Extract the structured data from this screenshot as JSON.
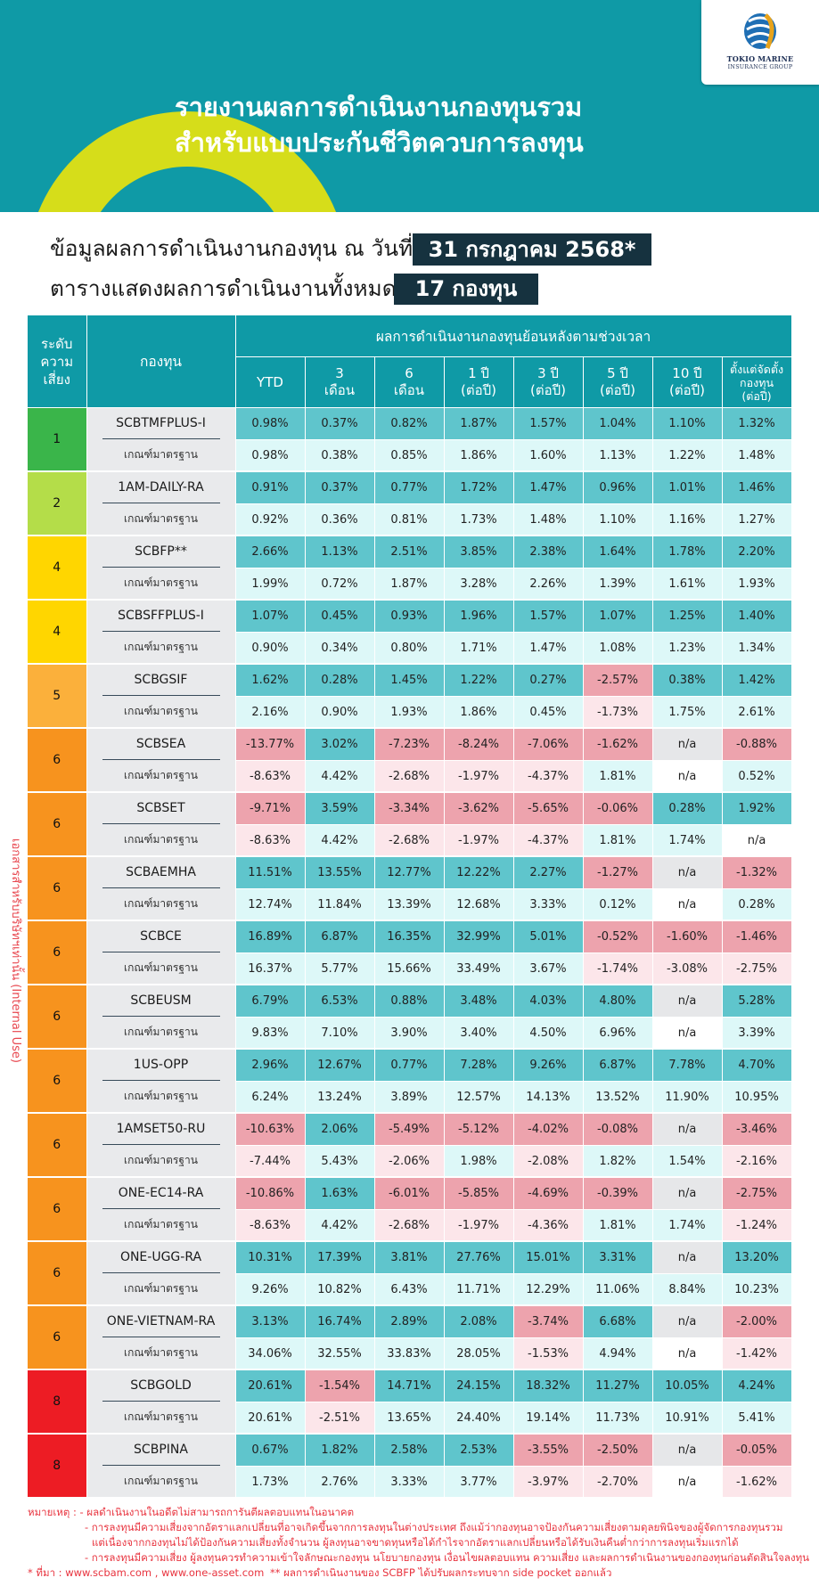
{
  "header": {
    "title_line1": "รายงานผลการดำเนินงานกองทุนรวม",
    "title_line2": "สำหรับแบบประกันชีวิตควบการลงทุน",
    "logo_name": "TOKIO MARINE",
    "logo_sub": "INSURANCE GROUP",
    "accent": "#0f9aa6",
    "arc_color": "#d6dd1a"
  },
  "info": {
    "line1_text": "ข้อมูลผลการดำเนินงานกองทุน ณ วันที่",
    "line1_badge": "31 กรกฎาคม 2568*",
    "line2_text": "ตารางแสดงผลการดำเนินงานทั้งหมด",
    "line2_badge": "17 กองทุน"
  },
  "side_note": "เอกสารสำหรับบริษัทฯเท่านั้น (Internal Use)",
  "table": {
    "risk_header": [
      "ระดับ",
      "ความ",
      "เสี่ยง"
    ],
    "fund_header": "กองทุน",
    "period_group_header": "ผลการดำเนินงานกองทุนย้อนหลังตามช่วงเวลา",
    "period_headers": [
      [
        "YTD"
      ],
      [
        "3",
        "เดือน"
      ],
      [
        "6",
        "เดือน"
      ],
      [
        "1 ปี",
        "(ต่อปี)"
      ],
      [
        "3 ปี",
        "(ต่อปี)"
      ],
      [
        "5 ปี",
        "(ต่อปี)"
      ],
      [
        "10 ปี",
        "(ต่อปี)"
      ],
      [
        "ตั้งแต่จัดตั้ง",
        "กองทุน",
        "(ต่อปี)"
      ]
    ],
    "benchmark_label": "เกณฑ์มาตรฐาน",
    "funds": [
      {
        "risk": "1",
        "name": "SCBTMFPLUS-I",
        "values": [
          "0.98%",
          "0.37%",
          "0.82%",
          "1.87%",
          "1.57%",
          "1.04%",
          "1.10%",
          "1.32%"
        ],
        "bench": [
          "0.98%",
          "0.38%",
          "0.85%",
          "1.86%",
          "1.60%",
          "1.13%",
          "1.22%",
          "1.48%"
        ]
      },
      {
        "risk": "2",
        "name": "1AM-DAILY-RA",
        "values": [
          "0.91%",
          "0.37%",
          "0.77%",
          "1.72%",
          "1.47%",
          "0.96%",
          "1.01%",
          "1.46%"
        ],
        "bench": [
          "0.92%",
          "0.36%",
          "0.81%",
          "1.73%",
          "1.48%",
          "1.10%",
          "1.16%",
          "1.27%"
        ]
      },
      {
        "risk": "4",
        "name": "SCBFP**",
        "values": [
          "2.66%",
          "1.13%",
          "2.51%",
          "3.85%",
          "2.38%",
          "1.64%",
          "1.78%",
          "2.20%"
        ],
        "bench": [
          "1.99%",
          "0.72%",
          "1.87%",
          "3.28%",
          "2.26%",
          "1.39%",
          "1.61%",
          "1.93%"
        ]
      },
      {
        "risk": "4",
        "name": "SCBSFFPLUS-I",
        "values": [
          "1.07%",
          "0.45%",
          "0.93%",
          "1.96%",
          "1.57%",
          "1.07%",
          "1.25%",
          "1.40%"
        ],
        "bench": [
          "0.90%",
          "0.34%",
          "0.80%",
          "1.71%",
          "1.47%",
          "1.08%",
          "1.23%",
          "1.34%"
        ]
      },
      {
        "risk": "5",
        "name": "SCBGSIF",
        "values": [
          "1.62%",
          "0.28%",
          "1.45%",
          "1.22%",
          "0.27%",
          "-2.57%",
          "0.38%",
          "1.42%"
        ],
        "bench": [
          "2.16%",
          "0.90%",
          "1.93%",
          "1.86%",
          "0.45%",
          "-1.73%",
          "1.75%",
          "2.61%"
        ]
      },
      {
        "risk": "6",
        "name": "SCBSEA",
        "values": [
          "-13.77%",
          "3.02%",
          "-7.23%",
          "-8.24%",
          "-7.06%",
          "-1.62%",
          "n/a",
          "-0.88%"
        ],
        "bench": [
          "-8.63%",
          "4.42%",
          "-2.68%",
          "-1.97%",
          "-4.37%",
          "1.81%",
          "n/a",
          "0.52%"
        ]
      },
      {
        "risk": "6",
        "name": "SCBSET",
        "values": [
          "-9.71%",
          "3.59%",
          "-3.34%",
          "-3.62%",
          "-5.65%",
          "-0.06%",
          "0.28%",
          "1.92%"
        ],
        "bench": [
          "-8.63%",
          "4.42%",
          "-2.68%",
          "-1.97%",
          "-4.37%",
          "1.81%",
          "1.74%",
          "n/a"
        ]
      },
      {
        "risk": "6",
        "name": "SCBAEMHA",
        "values": [
          "11.51%",
          "13.55%",
          "12.77%",
          "12.22%",
          "2.27%",
          "-1.27%",
          "n/a",
          "-1.32%"
        ],
        "bench": [
          "12.74%",
          "11.84%",
          "13.39%",
          "12.68%",
          "3.33%",
          "0.12%",
          "n/a",
          "0.28%"
        ]
      },
      {
        "risk": "6",
        "name": "SCBCE",
        "values": [
          "16.89%",
          "6.87%",
          "16.35%",
          "32.99%",
          "5.01%",
          "-0.52%",
          "-1.60%",
          "-1.46%"
        ],
        "bench": [
          "16.37%",
          "5.77%",
          "15.66%",
          "33.49%",
          "3.67%",
          "-1.74%",
          "-3.08%",
          "-2.75%"
        ]
      },
      {
        "risk": "6",
        "name": "SCBEUSM",
        "values": [
          "6.79%",
          "6.53%",
          "0.88%",
          "3.48%",
          "4.03%",
          "4.80%",
          "n/a",
          "5.28%"
        ],
        "bench": [
          "9.83%",
          "7.10%",
          "3.90%",
          "3.40%",
          "4.50%",
          "6.96%",
          "n/a",
          "3.39%"
        ]
      },
      {
        "risk": "6",
        "name": "1US-OPP",
        "values": [
          "2.96%",
          "12.67%",
          "0.77%",
          "7.28%",
          "9.26%",
          "6.87%",
          "7.78%",
          "4.70%"
        ],
        "bench": [
          "6.24%",
          "13.24%",
          "3.89%",
          "12.57%",
          "14.13%",
          "13.52%",
          "11.90%",
          "10.95%"
        ]
      },
      {
        "risk": "6",
        "name": "1AMSET50-RU",
        "values": [
          "-10.63%",
          "2.06%",
          "-5.49%",
          "-5.12%",
          "-4.02%",
          "-0.08%",
          "n/a",
          "-3.46%"
        ],
        "bench": [
          "-7.44%",
          "5.43%",
          "-2.06%",
          "1.98%",
          "-2.08%",
          "1.82%",
          "1.54%",
          "-2.16%"
        ]
      },
      {
        "risk": "6",
        "name": "ONE-EC14-RA",
        "values": [
          "-10.86%",
          "1.63%",
          "-6.01%",
          "-5.85%",
          "-4.69%",
          "-0.39%",
          "n/a",
          "-2.75%"
        ],
        "bench": [
          "-8.63%",
          "4.42%",
          "-2.68%",
          "-1.97%",
          "-4.36%",
          "1.81%",
          "1.74%",
          "-1.24%"
        ]
      },
      {
        "risk": "6",
        "name": "ONE-UGG-RA",
        "values": [
          "10.31%",
          "17.39%",
          "3.81%",
          "27.76%",
          "15.01%",
          "3.31%",
          "n/a",
          "13.20%"
        ],
        "bench": [
          "9.26%",
          "10.82%",
          "6.43%",
          "11.71%",
          "12.29%",
          "11.06%",
          "8.84%",
          "10.23%"
        ]
      },
      {
        "risk": "6",
        "name": "ONE-VIETNAM-RA",
        "values": [
          "3.13%",
          "16.74%",
          "2.89%",
          "2.08%",
          "-3.74%",
          "6.68%",
          "n/a",
          "-2.00%"
        ],
        "bench": [
          "34.06%",
          "32.55%",
          "33.83%",
          "28.05%",
          "-1.53%",
          "4.94%",
          "n/a",
          "-1.42%"
        ]
      },
      {
        "risk": "8",
        "name": "SCBGOLD",
        "values": [
          "20.61%",
          "-1.54%",
          "14.71%",
          "24.15%",
          "18.32%",
          "11.27%",
          "10.05%",
          "4.24%"
        ],
        "bench": [
          "20.61%",
          "-2.51%",
          "13.65%",
          "24.40%",
          "19.14%",
          "11.73%",
          "10.91%",
          "5.41%"
        ]
      },
      {
        "risk": "8",
        "name": "SCBPINA",
        "values": [
          "0.67%",
          "1.82%",
          "2.58%",
          "2.53%",
          "-3.55%",
          "-2.50%",
          "n/a",
          "-0.05%"
        ],
        "bench": [
          "1.73%",
          "2.76%",
          "3.33%",
          "3.77%",
          "-3.97%",
          "-2.70%",
          "n/a",
          "-1.62%"
        ]
      }
    ]
  },
  "risk_colors": {
    "1": "#3ab54a",
    "2": "#b4dd49",
    "4": "#ffd600",
    "5": "#fbb03b",
    "6": "#f7931e",
    "8": "#ed1c24"
  },
  "cell_colors": {
    "positive": "#5fc5cc",
    "negative": "#eda3ad",
    "na": "#e6e7e9",
    "bench_positive": "#ddf8f8",
    "bench_negative": "#fce6ea",
    "bench_na": "#ffffff"
  },
  "footnotes": {
    "line1": "หมายเหตุ :  - ผลดำเนินงานในอดีตไม่สามารถการันตีผลตอบแทนในอนาคต",
    "line2": "- การลงทุนมีความเสี่ยงจากอัตราแลกเปลี่ยนที่อาจเกิดขึ้นจากการลงทุนในต่างประเทศ ถึงแม้ว่ากองทุนอาจป้องกันความเสี่ยงตามดุลยพินิจของผู้จัดการกองทุนรวม",
    "line3": "แต่เนื่องจากกองทุนไม่ได้ป้องกันความเสี่ยงทั้งจำนวน ผู้ลงทุนอาจขาดทุนหรือได้กำไรจากอัตราแลกเปลี่ยนหรือได้รับเงินคืนต่ำกว่าการลงทุนเริ่มแรกได้",
    "line4": "- การลงทุนมีความเสี่ยง ผู้ลงทุนควรทำความเข้าใจลักษณะกองทุน นโยบายกองทุน เงื่อนไขผลตอบแทน ความเสี่ยง และผลการดำเนินงานของกองทุนก่อนตัดสินใจลงทุน",
    "source": "* ที่มา : www.scbam.com , www.one-asset.com",
    "note2": "** ผลการดำเนินงานของ SCBFP ได้ปรับผลกระทบจาก side pocket ออกแล้ว"
  }
}
